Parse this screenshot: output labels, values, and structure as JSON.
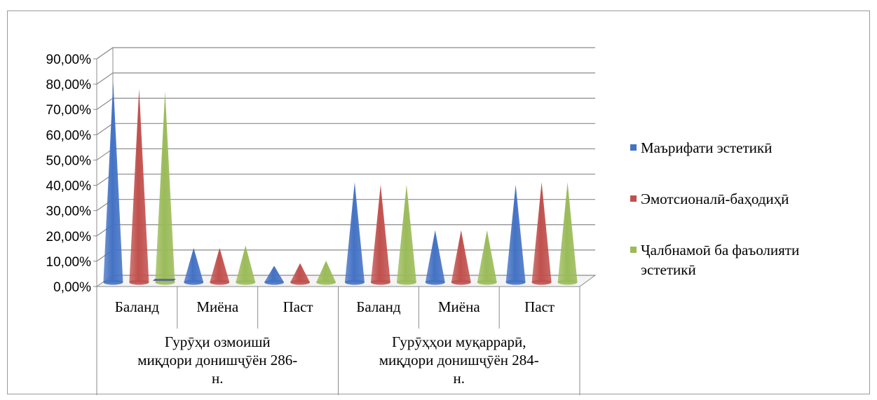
{
  "chart_data": {
    "type": "bar",
    "style": "3d-cone",
    "title": "",
    "xlabel": "",
    "ylabel": "",
    "ylim": [
      0,
      0.9
    ],
    "y_ticks": [
      "0,00%",
      "10,00%",
      "20,00%",
      "30,00%",
      "40,00%",
      "50,00%",
      "60,00%",
      "70,00%",
      "80,00%",
      "90,00%"
    ],
    "grid": true,
    "legend_position": "right",
    "groups": [
      {
        "label_lines": [
          "Гурӯҳи озмоишӣ",
          "миқдори донишҷӯён 286-",
          "н."
        ],
        "categories": [
          "Баланд",
          "Миёна",
          "Паст"
        ]
      },
      {
        "label_lines": [
          "Гурӯҳҳои муқаррарӣ,",
          "миқдори донишҷӯён 284-",
          "н."
        ],
        "categories": [
          "Баланд",
          "Миёна",
          "Паст"
        ]
      }
    ],
    "series": [
      {
        "name": "Маърифати эстетикӣ",
        "legend_lines": [
          "Маърифати эстетикӣ"
        ],
        "color": "#4472c4",
        "values": [
          0.79,
          0.13,
          0.06,
          0.39,
          0.2,
          0.38
        ]
      },
      {
        "name": "Эмотсионалӣ-баҳодиҳӣ",
        "legend_lines": [
          "Эмотсионалӣ-баҳодиҳӣ"
        ],
        "color": "#c0504d",
        "values": [
          0.76,
          0.13,
          0.07,
          0.38,
          0.2,
          0.39
        ]
      },
      {
        "name": "Ҷалбнамоӣ ба фаъолияти эстетикӣ",
        "legend_lines": [
          "Ҷалбнамоӣ ба фаъолияти",
          "эстетикӣ"
        ],
        "color": "#9bbb59",
        "values": [
          0.75,
          0.14,
          0.08,
          0.38,
          0.2,
          0.39
        ]
      }
    ]
  }
}
